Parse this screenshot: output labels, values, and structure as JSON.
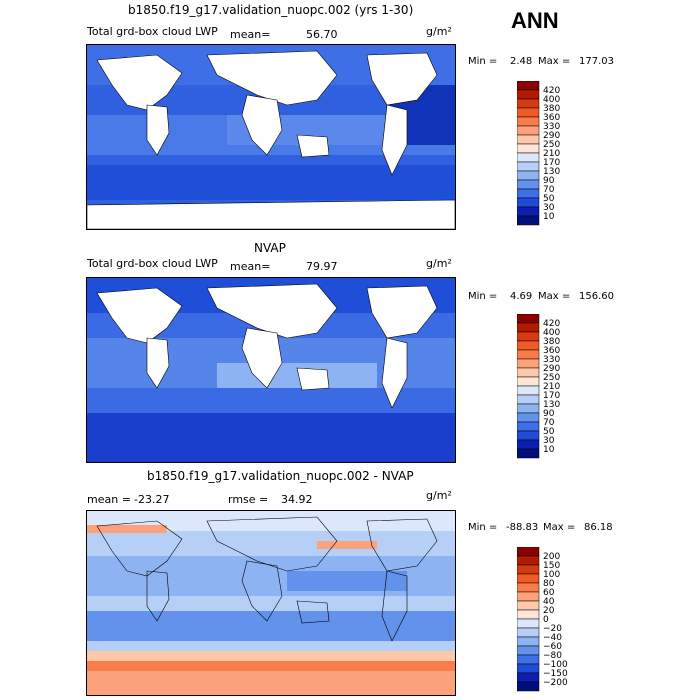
{
  "season": "ANN",
  "panels": [
    {
      "title": "b1850.f19_g17.validation_nuopc.002 (yrs 1-30)",
      "variable": "Total grd-box cloud LWP",
      "mean_label": "mean=",
      "mean_value": "56.70",
      "units": "g/m²",
      "min_label": "Min =",
      "min_value": "2.48",
      "max_label": "Max =",
      "max_value": "177.03",
      "levels": [
        "420",
        "400",
        "380",
        "360",
        "330",
        "290",
        "250",
        "210",
        "170",
        "130",
        "90",
        "70",
        "50",
        "30",
        "10"
      ],
      "colors": [
        "#8b0000",
        "#b31a00",
        "#d73a10",
        "#ef5a28",
        "#f97d4a",
        "#fca27a",
        "#fdc9a9",
        "#fde6d6",
        "#dbe8fb",
        "#b6cff7",
        "#8eb3f2",
        "#6292ec",
        "#3d6fe6",
        "#1e4bd8",
        "#0a1fb0",
        "#00107a"
      ]
    },
    {
      "title": "NVAP",
      "variable": "Total grd-box cloud LWP",
      "mean_label": "mean=",
      "mean_value": "79.97",
      "units": "g/m²",
      "min_label": "Min =",
      "min_value": "4.69",
      "max_label": "Max =",
      "max_value": "156.60",
      "levels": [
        "420",
        "400",
        "380",
        "360",
        "330",
        "290",
        "250",
        "210",
        "170",
        "130",
        "90",
        "70",
        "50",
        "30",
        "10"
      ],
      "colors": [
        "#8b0000",
        "#b31a00",
        "#d73a10",
        "#ef5a28",
        "#f97d4a",
        "#fca27a",
        "#fdc9a9",
        "#fde6d6",
        "#dbe8fb",
        "#b6cff7",
        "#8eb3f2",
        "#6292ec",
        "#3d6fe6",
        "#1e4bd8",
        "#0a1fb0",
        "#00107a"
      ]
    },
    {
      "title": "b1850.f19_g17.validation_nuopc.002 - NVAP",
      "variable": "",
      "mean_label": "mean =",
      "mean_value": "-23.27",
      "rmse_label": "rmse =",
      "rmse_value": "34.92",
      "units": "g/m²",
      "min_label": "Min =",
      "min_value": "-88.83",
      "max_label": "Max =",
      "max_value": "86.18",
      "levels": [
        "200",
        "150",
        "100",
        "80",
        "60",
        "40",
        "20",
        "0",
        "−20",
        "−40",
        "−60",
        "−80",
        "−100",
        "−150",
        "−200"
      ],
      "colors": [
        "#8b0000",
        "#b31a00",
        "#d73a10",
        "#ef5a28",
        "#f97d4a",
        "#fca27a",
        "#fdc9a9",
        "#fde6d6",
        "#dbe8fb",
        "#b6cff7",
        "#8eb3f2",
        "#6292ec",
        "#3d6fe6",
        "#1e4bd8",
        "#0a1fb0",
        "#00107a"
      ]
    }
  ],
  "chart_data": {
    "type": "heatmap",
    "description_units": "g/m2",
    "maps": [
      {
        "title": "b1850.f19_g17.validation_nuopc.002 (yrs 1-30)",
        "mean": 56.7,
        "min": 2.48,
        "max": 177.03
      },
      {
        "title": "NVAP",
        "mean": 79.97,
        "min": 4.69,
        "max": 156.6
      },
      {
        "title": "b1850.f19_g17.validation_nuopc.002 - NVAP",
        "mean": -23.27,
        "rmse": 34.92,
        "min": -88.83,
        "max": 86.18
      }
    ]
  }
}
